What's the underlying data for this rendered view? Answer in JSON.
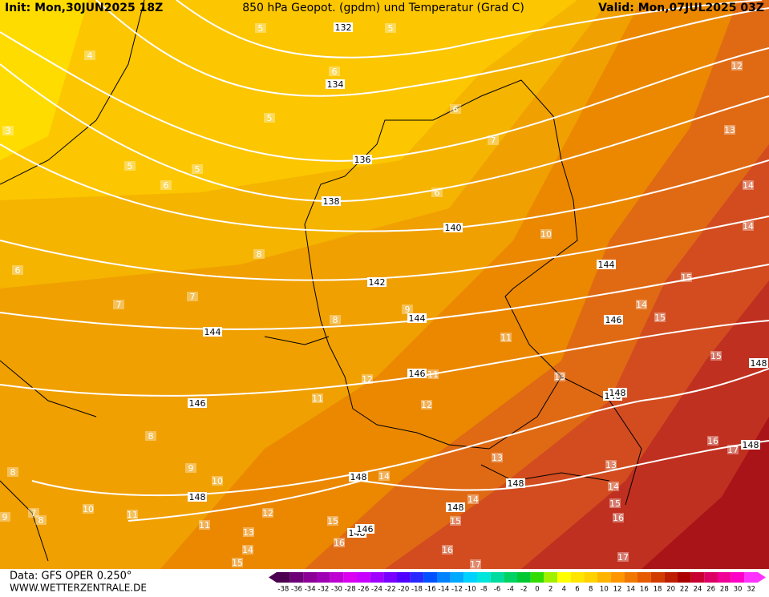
{
  "header": {
    "init": "Init: Mon,30JUN2025 18Z",
    "title": "850 hPa Geopot. (gpdm) und Temperatur (Grad C)",
    "valid": "Valid: Mon,07JUL2025 03Z"
  },
  "footer": {
    "source": "Data: GFS OPER 0.250°",
    "website": "WWW.WETTERZENTRALE.DE"
  },
  "color_scale": {
    "values": [
      -38,
      -36,
      -34,
      -32,
      -30,
      -28,
      -26,
      -24,
      -22,
      -20,
      -18,
      -16,
      -14,
      -12,
      -10,
      -8,
      -6,
      -4,
      -2,
      0,
      2,
      4,
      6,
      8,
      10,
      12,
      14,
      16,
      18,
      20,
      22,
      24,
      26,
      28,
      30,
      32
    ],
    "colors": [
      "#4b0050",
      "#6e0078",
      "#8c0096",
      "#a000b4",
      "#be00d2",
      "#dc00f0",
      "#c800ff",
      "#a000ff",
      "#7800ff",
      "#5000ff",
      "#2828ff",
      "#0050ff",
      "#0082ff",
      "#00aaff",
      "#00d2ff",
      "#00e6dc",
      "#00dca0",
      "#00d264",
      "#00c832",
      "#32dc00",
      "#a0f000",
      "#ffff00",
      "#ffe600",
      "#ffd200",
      "#ffb400",
      "#ff9600",
      "#f07800",
      "#e65a00",
      "#d23c00",
      "#be1e00",
      "#aa0000",
      "#c80032",
      "#dc0064",
      "#f00096",
      "#ff00c8",
      "#ff32ff"
    ]
  },
  "contour_labels": {
    "geopotential": [
      132,
      134,
      136,
      138,
      140,
      142,
      144,
      144,
      144,
      146,
      146,
      146,
      148,
      148,
      148,
      148,
      148,
      148,
      148,
      148,
      148,
      146
    ],
    "temperature": [
      5,
      5,
      4,
      6,
      12,
      5,
      6,
      3,
      13,
      5,
      5,
      7,
      6,
      6,
      14,
      14,
      10,
      6,
      8,
      15,
      7,
      7,
      14,
      15,
      9,
      8,
      11,
      15,
      11,
      12,
      13,
      11,
      12,
      8,
      16,
      17,
      9,
      13,
      13,
      8,
      10,
      14,
      14,
      15,
      10,
      11,
      12,
      14,
      15,
      16,
      11,
      13,
      15,
      14,
      16,
      16,
      15,
      17,
      17,
      8,
      9,
      7
    ]
  }
}
